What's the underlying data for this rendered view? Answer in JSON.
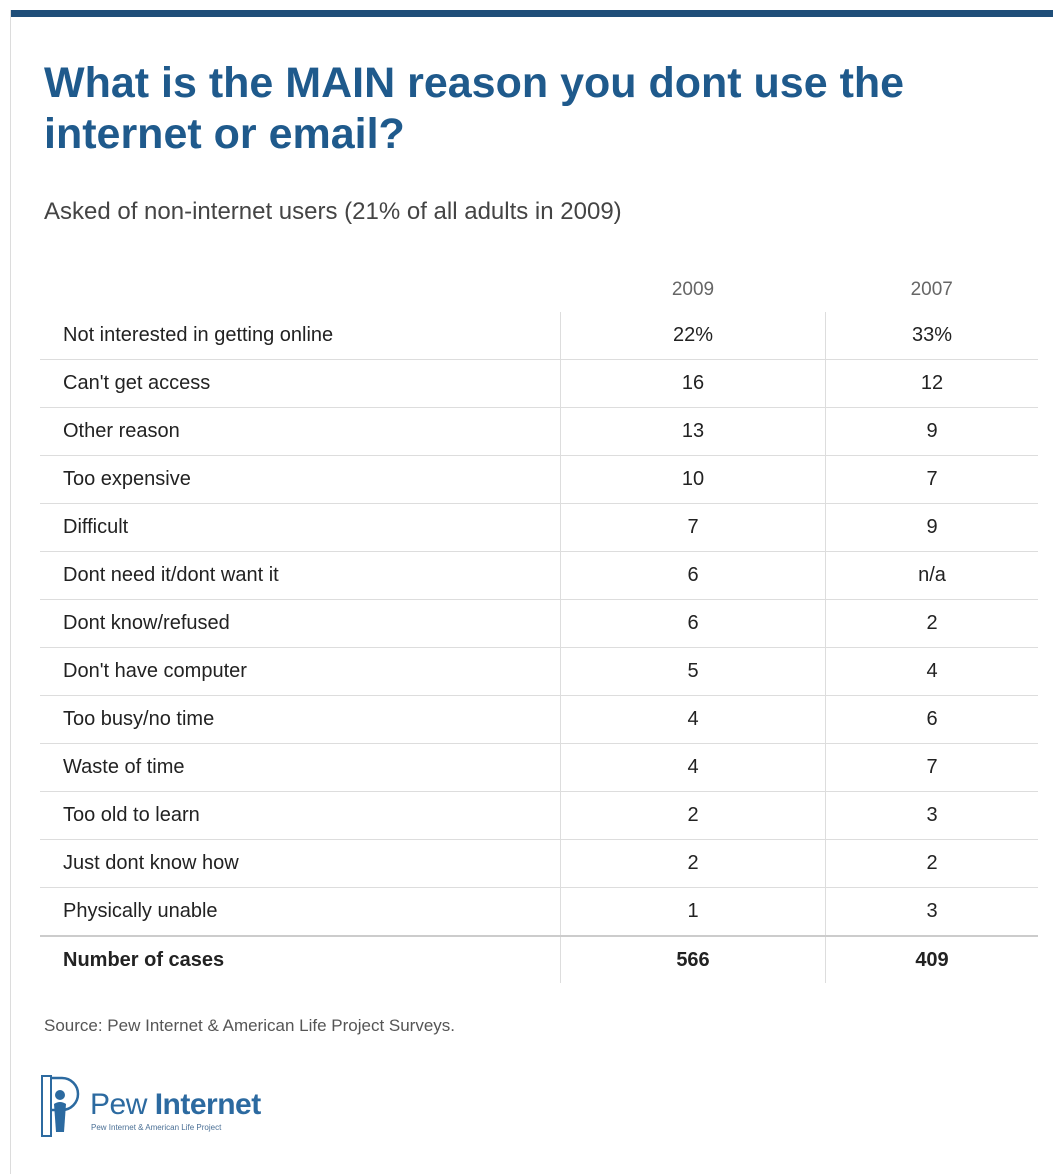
{
  "title": "What is the MAIN reason you dont use the internet or email?",
  "subtitle": "Asked of non-internet users (21% of all adults in 2009)",
  "source": "Source: Pew Internet & American Life Project Surveys.",
  "logo": {
    "word_light": "Pew ",
    "word_bold": "Internet",
    "tagline": "Pew Internet & American Life Project",
    "icon": "pew-p-icon"
  },
  "colors": {
    "title": "#1f5a8c",
    "top_rule": "#1f4e79",
    "gridline": "#dddddd"
  },
  "chart_data": {
    "type": "table",
    "columns": [
      "2009",
      "2007"
    ],
    "rows": [
      {
        "label": "Not interested in getting online",
        "v2009": "22%",
        "v2007": "33%"
      },
      {
        "label": "Can't get access",
        "v2009": "16",
        "v2007": "12"
      },
      {
        "label": "Other reason",
        "v2009": "13",
        "v2007": "9"
      },
      {
        "label": "Too expensive",
        "v2009": "10",
        "v2007": "7"
      },
      {
        "label": "Difficult",
        "v2009": "7",
        "v2007": "9"
      },
      {
        "label": "Dont need it/dont want it",
        "v2009": "6",
        "v2007": "n/a"
      },
      {
        "label": "Dont know/refused",
        "v2009": "6",
        "v2007": "2"
      },
      {
        "label": "Don't have computer",
        "v2009": "5",
        "v2007": "4"
      },
      {
        "label": "Too busy/no time",
        "v2009": "4",
        "v2007": "6"
      },
      {
        "label": "Waste of time",
        "v2009": "4",
        "v2007": "7"
      },
      {
        "label": "Too old to learn",
        "v2009": "2",
        "v2007": "3"
      },
      {
        "label": "Just dont know how",
        "v2009": "2",
        "v2007": "2"
      },
      {
        "label": "Physically unable",
        "v2009": "1",
        "v2007": "3"
      }
    ],
    "total": {
      "label": "Number of cases",
      "v2009": "566",
      "v2007": "409"
    }
  }
}
